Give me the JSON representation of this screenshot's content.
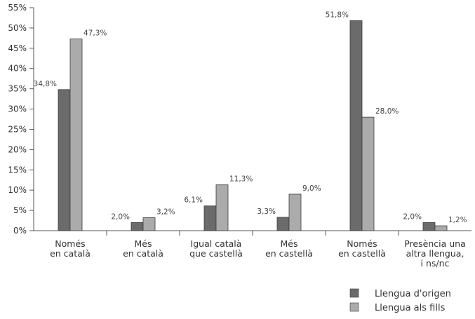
{
  "chart_data": {
    "type": "bar",
    "categories": [
      [
        "Només",
        "en català"
      ],
      [
        "Més",
        "en català"
      ],
      [
        "Igual català",
        "que castellà"
      ],
      [
        "Més",
        "en castellà"
      ],
      [
        "Només",
        "en castellà"
      ],
      [
        "Presència una",
        "altra llengua,",
        "i ns/nc"
      ]
    ],
    "series": [
      {
        "name": "Llengua d'origen",
        "color": "#6b6b6b",
        "values": [
          34.8,
          2.0,
          6.1,
          3.3,
          51.8,
          2.0
        ],
        "labels": [
          "34,8%",
          "2,0%",
          "6,1%",
          "3,3%",
          "51,8%",
          "2,0%"
        ]
      },
      {
        "name": "Llengua als fills",
        "color": "#ababab",
        "values": [
          47.3,
          3.2,
          11.3,
          9.0,
          28.0,
          1.2
        ],
        "labels": [
          "47,3%",
          "3,2%",
          "11,3%",
          "9,0%",
          "28,0%",
          "1,2%"
        ]
      }
    ],
    "yticks": [
      "0%",
      "5%",
      "10%",
      "15%",
      "20%",
      "25%",
      "30%",
      "35%",
      "40%",
      "45%",
      "50%",
      "55%"
    ],
    "ylim": [
      0,
      55
    ],
    "grid": false,
    "legend": "bottom-right",
    "title": "",
    "xlabel": "",
    "ylabel": ""
  }
}
